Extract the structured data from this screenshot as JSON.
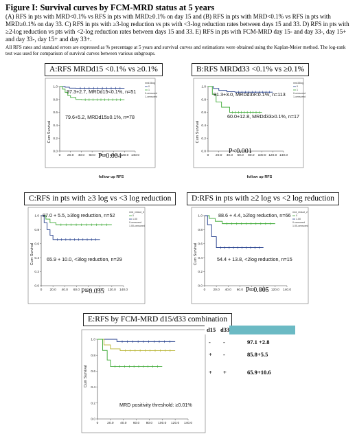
{
  "figure_title": "Figure I: Survival curves by FCM-MRD status at 5 years",
  "caption": "(A) RFS in pts with MRD<0.1% vs RFS in pts with MRD≥0.1% on day 15 and (B) RFS in pts with MRD<0.1% vs RFS in pts with MRD≥0.1% on day 33. C) RFS in pts with ≥3-log reduction vs pts with <3-log reduction rates between days 15 and 33. D) RFS in pts with ≥2-log reduction vs pts with <2-log reduction rates between days 15 and 33. E) RFS in pts with FCM-MRD day 15- and day 33-, day 15+ and day 33-, day 15+ and day 33+.",
  "note": "All RFS rates and standard errors are expressed as % percentage at 5 years and survival curves and estimations were obtained using the Kaplan-Meier method. The log-rank test was used for comparison of survival curves between various subgroups.",
  "panels": {
    "A": {
      "title": "A:RFS MRDd15 <0.1% vs ≥0.1%",
      "ann1": "97.3+2.7, MRDd15<0.1%, n=51",
      "ann2": "79.6+5.2,  MRDd15≥0.1%, n=78",
      "pvalue": "P=0.004",
      "ylabel": "Cum Survival",
      "xlabel": "follow up RFS",
      "legend_title": "mrd15log",
      "legend": [
        "0",
        "1",
        "0-censored",
        "1-censored"
      ]
    },
    "B": {
      "title": "B:RFS MRDd33 <0.1% vs ≥0.1%",
      "ann1": "91.3+3.0,  MRDd33<0.1%, n=113",
      "ann2": "60.0+12.8,  MRDd33≥0.1%, n=17",
      "pvalue": "P<0.001",
      "ylabel": "Cum Survival",
      "xlabel": "follow up RFS",
      "legend_title": "mrd33log",
      "legend": [
        "0",
        "1",
        "0-censored",
        "1-censored"
      ]
    },
    "C": {
      "title": "C:RFS in pts with  ≥3 log vs <3 log reduction",
      "ann1": "87.0 + 5.5, ≥3log reduction, n=52",
      "ann2": "65.9 + 10.0, <3log reduction, n=29",
      "pvalue": "P=0.035",
      "ylabel": "Cum Survival",
      "legend_title": "mrd_reduct_3",
      "legend": [
        "0",
        "1.00",
        "0-censored",
        "1.00-censored"
      ]
    },
    "D": {
      "title": "D:RFS in pts with  ≥2 log vs <2 log reduction",
      "ann1": "88.6 + 4.4, ≥2log reduction, n=66",
      "ann2": "54.4 + 13.8, <2log reduction, n=15",
      "pvalue": "P=0.005",
      "ylabel": "Cum Survival",
      "legend_title": "mrd_reduct_2",
      "legend": [
        "0",
        "1.00",
        "0-censored",
        "1.00-censored"
      ]
    },
    "E": {
      "title": "E:RFS by FCM-MRD d15/d33 combination",
      "ylabel": "Cum Survival",
      "threshold": "MRD positivity threshold: ≥0.01%"
    }
  },
  "combo_table": {
    "h15": "d15",
    "h33": "d33",
    "rows": [
      {
        "d15": "-",
        "d33": "-",
        "rfs": "97.1 +2.8"
      },
      {
        "d15": "+",
        "d33": "-",
        "rfs": "85.8+5.5"
      },
      {
        "d15": "+",
        "d33": "+",
        "rfs": "65.9+10.6"
      }
    ]
  },
  "colors": {
    "navy": "#1f3a8a",
    "green": "#3aa832",
    "olive": "#b7b32e"
  },
  "chart_data": [
    {
      "type": "line",
      "panel": "A",
      "x_ticks": [
        "0",
        "20.0",
        "40.0",
        "60.0",
        "80.0",
        "100.0",
        "120.0",
        "140.0"
      ],
      "y_ticks": [
        "0.0",
        "0.2",
        "0.4",
        "0.6",
        "0.8",
        "1.0"
      ],
      "xlim": [
        0,
        140
      ],
      "ylim": [
        0,
        1
      ],
      "series": [
        {
          "name": "0",
          "color": "#1f3a8a",
          "x": [
            0,
            10,
            18,
            30,
            120
          ],
          "y": [
            1.0,
            0.99,
            0.975,
            0.973,
            0.973
          ]
        },
        {
          "name": "1",
          "color": "#3aa832",
          "x": [
            0,
            5,
            10,
            15,
            20,
            30,
            40,
            120
          ],
          "y": [
            1.0,
            0.96,
            0.91,
            0.86,
            0.83,
            0.8,
            0.796,
            0.796
          ]
        }
      ]
    },
    {
      "type": "line",
      "panel": "B",
      "x_ticks": [
        "0",
        "20.0",
        "40.0",
        "60.0",
        "80.0",
        "100.0",
        "120.0",
        "140.0"
      ],
      "y_ticks": [
        "0.0",
        "0.2",
        "0.4",
        "0.6",
        "0.8",
        "1.0"
      ],
      "xlim": [
        0,
        140
      ],
      "ylim": [
        0,
        1
      ],
      "series": [
        {
          "name": "0",
          "color": "#1f3a8a",
          "x": [
            0,
            10,
            20,
            35,
            50,
            120
          ],
          "y": [
            1.0,
            0.97,
            0.94,
            0.92,
            0.913,
            0.913
          ]
        },
        {
          "name": "1",
          "color": "#3aa832",
          "x": [
            0,
            8,
            15,
            25,
            40,
            100
          ],
          "y": [
            1.0,
            0.88,
            0.76,
            0.68,
            0.6,
            0.6
          ]
        }
      ]
    },
    {
      "type": "line",
      "panel": "C",
      "x_ticks": [
        "0",
        "20.0",
        "40.0",
        "60.0",
        "80.0",
        "100.0",
        "120.0",
        "140.0"
      ],
      "y_ticks": [
        "0.0",
        "0.2",
        "0.4",
        "0.6",
        "0.8",
        "1.0"
      ],
      "xlim": [
        0,
        140
      ],
      "ylim": [
        0,
        1
      ],
      "series": [
        {
          "name": "0",
          "color": "#3aa832",
          "x": [
            0,
            8,
            15,
            25,
            120
          ],
          "y": [
            1.0,
            0.95,
            0.9,
            0.87,
            0.87
          ]
        },
        {
          "name": "1.00",
          "color": "#1f3a8a",
          "x": [
            0,
            5,
            10,
            15,
            20,
            100
          ],
          "y": [
            1.0,
            0.9,
            0.8,
            0.72,
            0.659,
            0.659
          ]
        }
      ]
    },
    {
      "type": "line",
      "panel": "D",
      "x_ticks": [
        "0",
        "20.0",
        "40.0",
        "60.0",
        "80.0",
        "100.0",
        "120.0",
        "140.0"
      ],
      "y_ticks": [
        "0.0",
        "0.2",
        "0.4",
        "0.6",
        "0.8",
        "1.0"
      ],
      "xlim": [
        0,
        140
      ],
      "ylim": [
        0,
        1
      ],
      "series": [
        {
          "name": "0",
          "color": "#3aa832",
          "x": [
            0,
            8,
            18,
            30,
            120
          ],
          "y": [
            1.0,
            0.96,
            0.92,
            0.886,
            0.886
          ]
        },
        {
          "name": "1.00",
          "color": "#1f3a8a",
          "x": [
            0,
            5,
            12,
            20,
            100
          ],
          "y": [
            1.0,
            0.87,
            0.7,
            0.544,
            0.544
          ]
        }
      ]
    },
    {
      "type": "line",
      "panel": "E",
      "x_ticks": [
        "0",
        "20.0",
        "40.0",
        "60.0",
        "80.0",
        "100.0",
        "120.0",
        "140.0"
      ],
      "y_ticks": [
        "0.0",
        "0.2",
        "0.4",
        "0.6",
        "0.8",
        "1.0"
      ],
      "xlim": [
        0,
        140
      ],
      "ylim": [
        0,
        1
      ],
      "series": [
        {
          "name": "d15- d33-",
          "color": "#1f3a8a",
          "x": [
            0,
            30,
            120
          ],
          "y": [
            1.0,
            0.971,
            0.971
          ]
        },
        {
          "name": "d15+ d33-",
          "color": "#b7b32e",
          "x": [
            0,
            10,
            20,
            35,
            120
          ],
          "y": [
            1.0,
            0.93,
            0.88,
            0.858,
            0.858
          ]
        },
        {
          "name": "d15+ d33+",
          "color": "#3aa832",
          "x": [
            0,
            8,
            15,
            20,
            100
          ],
          "y": [
            1.0,
            0.86,
            0.74,
            0.659,
            0.659
          ]
        }
      ]
    }
  ]
}
